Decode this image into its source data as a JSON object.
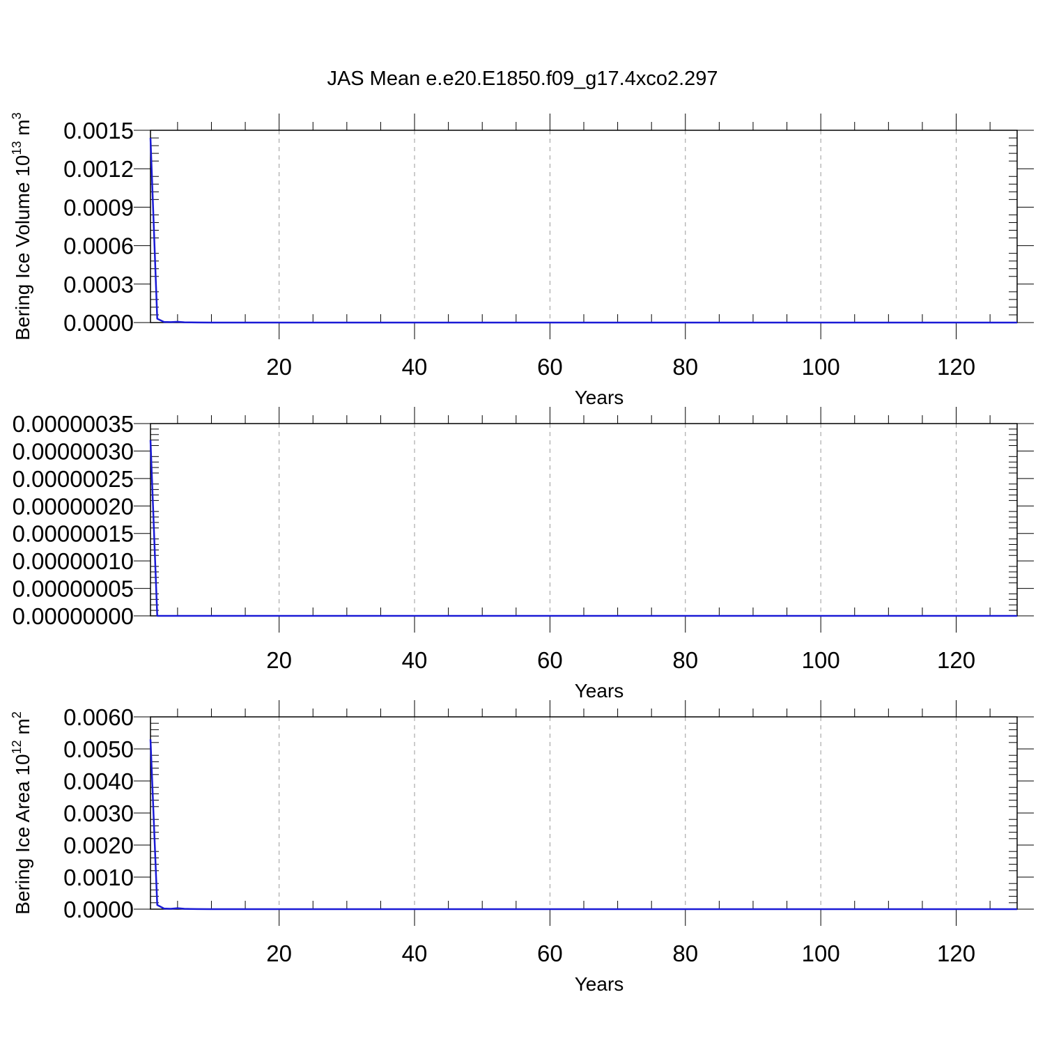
{
  "title": "JAS Mean e.e20.E1850.f09_g17.4xco2.297",
  "colors": {
    "line": "#1a1ad6",
    "axis": "#000000",
    "grid": "#999999",
    "background": "#ffffff"
  },
  "chart_data": [
    {
      "type": "line",
      "xlabel": "Years",
      "ylabel": {
        "text": "Bering Ice Volume 10",
        "sup": "13",
        "unit": " m",
        "unit_sup": "3"
      },
      "xlim": [
        1,
        129
      ],
      "ylim": [
        0,
        0.0015
      ],
      "xticks": [
        20,
        40,
        60,
        80,
        100,
        120
      ],
      "xtick_labels": [
        "20",
        "40",
        "60",
        "80",
        "100",
        "120"
      ],
      "yticks": [
        0,
        0.0003,
        0.0006,
        0.0009,
        0.0012,
        0.0015
      ],
      "ytick_labels": [
        "0.0000",
        "0.0003",
        "0.0006",
        "0.0009",
        "0.0012",
        "0.0015"
      ],
      "grid": "vertical-dashed",
      "series": [
        {
          "x": [
            1,
            2,
            3,
            4,
            5,
            6,
            7,
            8,
            10,
            15,
            20,
            40,
            60,
            80,
            100,
            120,
            129
          ],
          "y": [
            0.00144,
            3e-05,
            5e-06,
            3e-06,
            6e-06,
            2e-06,
            1e-06,
            5e-07,
            0,
            0,
            0,
            0,
            0,
            0,
            0,
            0,
            0
          ]
        }
      ]
    },
    {
      "type": "line",
      "xlabel": "Years",
      "ylabel": null,
      "xlim": [
        1,
        129
      ],
      "ylim": [
        0,
        3.5e-07
      ],
      "xticks": [
        20,
        40,
        60,
        80,
        100,
        120
      ],
      "xtick_labels": [
        "20",
        "40",
        "60",
        "80",
        "100",
        "120"
      ],
      "yticks": [
        0,
        5e-08,
        1e-07,
        1.5e-07,
        2e-07,
        2.5e-07,
        3e-07,
        3.5e-07
      ],
      "ytick_labels": [
        "0.00000000",
        "0.00000005",
        "0.00000010",
        "0.00000015",
        "0.00000020",
        "0.00000025",
        "0.00000030",
        "0.00000035"
      ],
      "grid": "vertical-dashed",
      "series": [
        {
          "x": [
            1,
            2,
            3,
            5,
            10,
            20,
            40,
            60,
            80,
            100,
            120,
            129
          ],
          "y": [
            3.2e-07,
            0,
            0,
            0,
            0,
            0,
            0,
            0,
            0,
            0,
            0,
            0
          ]
        }
      ]
    },
    {
      "type": "line",
      "xlabel": "Years",
      "ylabel": {
        "text": "Bering Ice Area 10",
        "sup": "12",
        "unit": " m",
        "unit_sup": "2"
      },
      "xlim": [
        1,
        129
      ],
      "ylim": [
        0,
        0.006
      ],
      "xticks": [
        20,
        40,
        60,
        80,
        100,
        120
      ],
      "xtick_labels": [
        "20",
        "40",
        "60",
        "80",
        "100",
        "120"
      ],
      "yticks": [
        0,
        0.001,
        0.002,
        0.003,
        0.004,
        0.005,
        0.006
      ],
      "ytick_labels": [
        "0.0000",
        "0.0010",
        "0.0020",
        "0.0030",
        "0.0040",
        "0.0050",
        "0.0060"
      ],
      "grid": "vertical-dashed",
      "series": [
        {
          "x": [
            1,
            2,
            3,
            4,
            5,
            6,
            7,
            8,
            10,
            15,
            20,
            40,
            60,
            80,
            100,
            120,
            129
          ],
          "y": [
            0.0053,
            0.00013,
            2e-05,
            1e-05,
            3e-05,
            1e-05,
            5e-06,
            2e-06,
            0,
            0,
            0,
            0,
            0,
            0,
            0,
            0,
            0
          ]
        }
      ]
    }
  ]
}
